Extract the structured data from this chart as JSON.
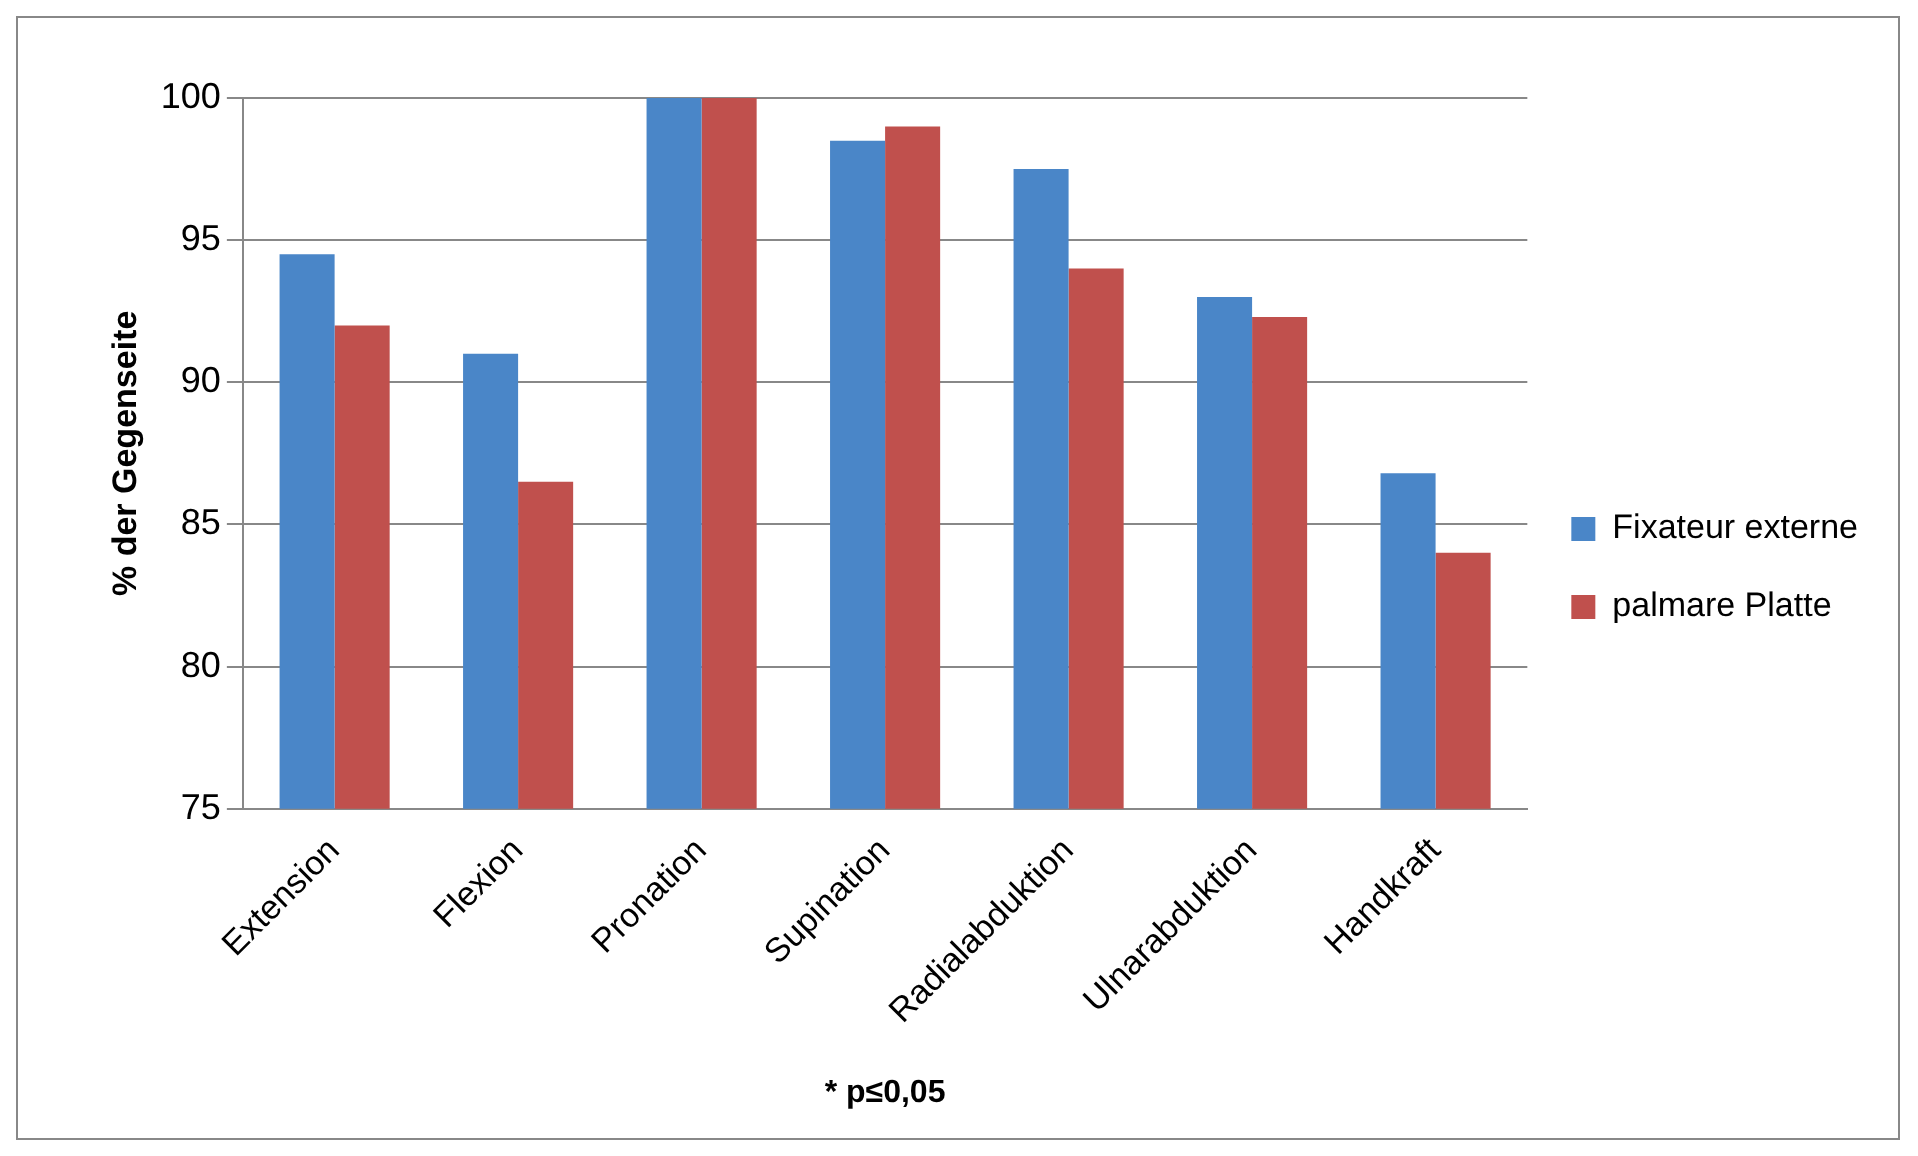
{
  "chart_data": {
    "type": "bar",
    "ylabel": "% der Gegenseite",
    "categories": [
      "Extension",
      "Flexion",
      "Pronation",
      "Supination",
      "Radialabduktion",
      "Ulnarabduktion",
      "Handkraft"
    ],
    "series": [
      {
        "name": "Fixateur externe",
        "color": "#4a86c8",
        "values": [
          94.5,
          91,
          100,
          98.5,
          97.5,
          93,
          86.8
        ]
      },
      {
        "name": "palmare Platte",
        "color": "#c0504d",
        "values": [
          92,
          86.5,
          100,
          99,
          94,
          92.3,
          84
        ]
      }
    ],
    "ylim": [
      75,
      100
    ],
    "yticks": [
      75,
      80,
      85,
      90,
      95,
      100
    ],
    "grid": "y",
    "legend": "right",
    "annotations": [
      "* p≤0,05"
    ]
  }
}
